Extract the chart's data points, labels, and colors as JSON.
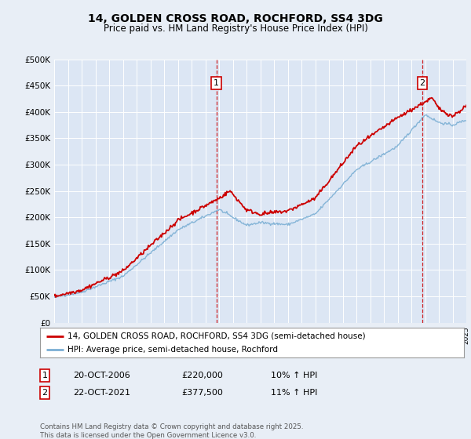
{
  "title": "14, GOLDEN CROSS ROAD, ROCHFORD, SS4 3DG",
  "subtitle": "Price paid vs. HM Land Registry's House Price Index (HPI)",
  "ylabel_ticks": [
    "£0",
    "£50K",
    "£100K",
    "£150K",
    "£200K",
    "£250K",
    "£300K",
    "£350K",
    "£400K",
    "£450K",
    "£500K"
  ],
  "ylim": [
    0,
    500000
  ],
  "yticks": [
    0,
    50000,
    100000,
    150000,
    200000,
    250000,
    300000,
    350000,
    400000,
    450000,
    500000
  ],
  "background_color": "#e8eef6",
  "plot_bg": "#dce6f4",
  "red_line_color": "#cc0000",
  "blue_line_color": "#7bafd4",
  "marker1_year": 2006.8,
  "marker1_value": 220000,
  "marker2_year": 2021.8,
  "marker2_value": 377500,
  "vline_color": "#cc0000",
  "annotation1": {
    "label": "1",
    "date": "20-OCT-2006",
    "price": "£220,000",
    "hpi": "10% ↑ HPI"
  },
  "annotation2": {
    "label": "2",
    "date": "22-OCT-2021",
    "price": "£377,500",
    "hpi": "11% ↑ HPI"
  },
  "legend_line1": "14, GOLDEN CROSS ROAD, ROCHFORD, SS4 3DG (semi-detached house)",
  "legend_line2": "HPI: Average price, semi-detached house, Rochford",
  "footer": "Contains HM Land Registry data © Crown copyright and database right 2025.\nThis data is licensed under the Open Government Licence v3.0.",
  "xstart": 1995,
  "xend": 2025
}
